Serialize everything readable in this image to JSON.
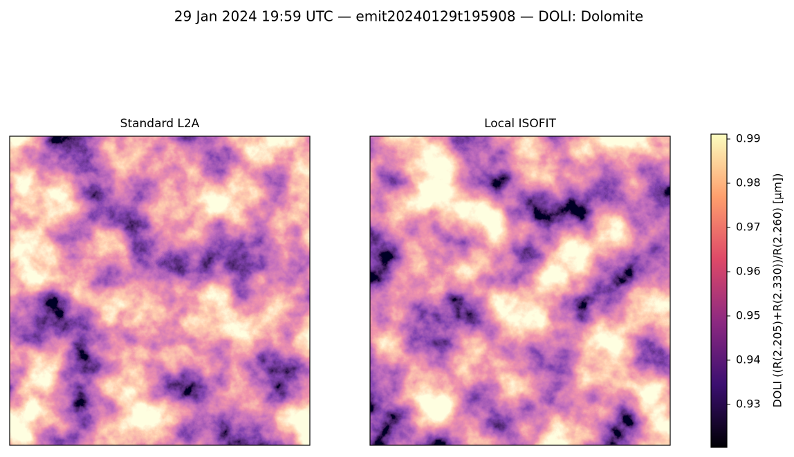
{
  "chart_data": {
    "type": "image",
    "title": "29 Jan 2024 19:59 UTC — emit20240129t195908 — DOLI: Dolomite",
    "panels": [
      {
        "title": "Standard L2A"
      },
      {
        "title": "Local ISOFIT"
      }
    ],
    "colorbar": {
      "label": "DOLI  ((R(2.205)+R(2.330))/R(2.260)  [µm])",
      "lim": [
        0.9203,
        0.9911
      ],
      "ticks": [
        0.93,
        0.94,
        0.95,
        0.96,
        0.97,
        0.98,
        0.99
      ],
      "colormap": "magma"
    }
  }
}
